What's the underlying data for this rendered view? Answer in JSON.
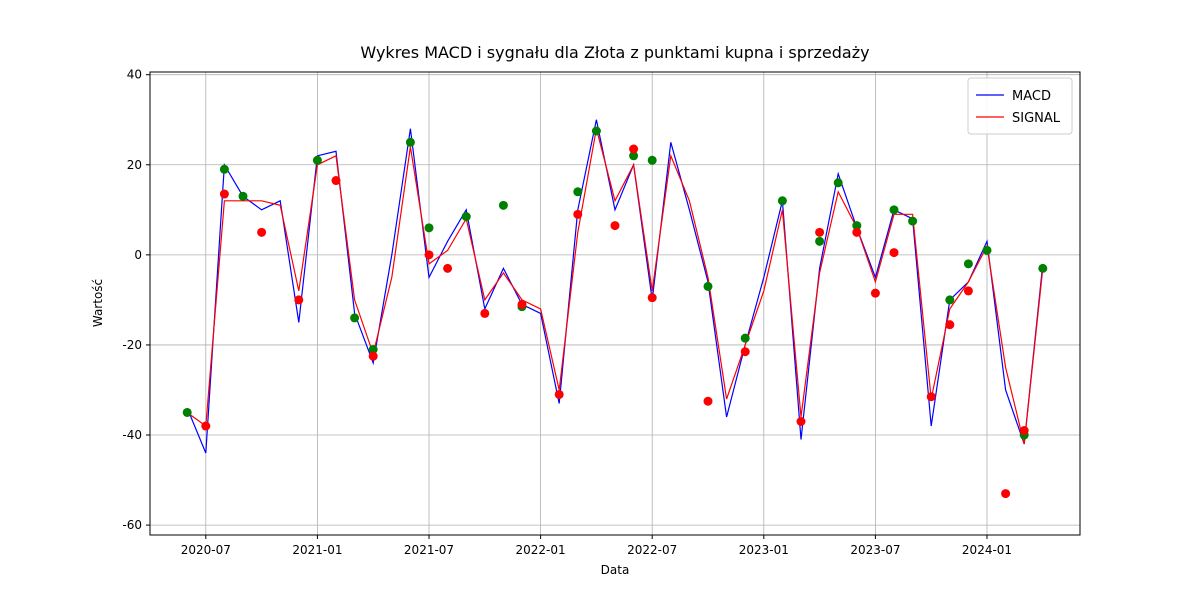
{
  "chart_data": {
    "type": "line",
    "title": "Wykres MACD i sygnału dla Złota z punktami kupna i sprzedaży",
    "x_label": "Data",
    "y_label": "Wartość",
    "x": [
      "2020-06",
      "2020-07",
      "2020-08",
      "2020-09",
      "2020-10",
      "2020-11",
      "2020-12",
      "2021-01",
      "2021-02",
      "2021-03",
      "2021-04",
      "2021-05",
      "2021-06",
      "2021-07",
      "2021-08",
      "2021-09",
      "2021-10",
      "2021-11",
      "2021-12",
      "2022-01",
      "2022-02",
      "2022-03",
      "2022-04",
      "2022-05",
      "2022-06",
      "2022-07",
      "2022-08",
      "2022-09",
      "2022-10",
      "2022-11",
      "2022-12",
      "2023-01",
      "2023-02",
      "2023-03",
      "2023-04",
      "2023-05",
      "2023-06",
      "2023-07",
      "2023-08",
      "2023-09",
      "2023-10",
      "2023-11",
      "2023-12",
      "2024-01",
      "2024-02",
      "2024-03",
      "2024-04"
    ],
    "series": [
      {
        "name": "MACD",
        "color": "#0000ff",
        "values": [
          -34,
          -44,
          20,
          13,
          10,
          12,
          -15,
          22,
          23,
          -13,
          -24,
          0,
          28,
          -5,
          3,
          10,
          -12,
          -3,
          -11,
          -13,
          -33,
          10,
          30,
          10,
          20,
          -10,
          25,
          10,
          -6,
          -36,
          -20,
          -5,
          12,
          -41,
          -3,
          18,
          6,
          -5,
          10,
          8,
          -38,
          -10,
          -6,
          3,
          -30,
          -42,
          -2
        ]
      },
      {
        "name": "SIGNAL",
        "color": "#ff0000",
        "values": [
          -35,
          -38,
          12,
          12,
          12,
          11,
          -8,
          20,
          22,
          -10,
          -22,
          -5,
          24,
          -2,
          1,
          8,
          -10,
          -4,
          -10,
          -12,
          -30,
          5,
          28,
          12,
          20,
          -8,
          22,
          12,
          -5,
          -32,
          -20,
          -8,
          10,
          -36,
          -4,
          14,
          6,
          -6,
          9,
          9,
          -32,
          -12,
          -6,
          2,
          -25,
          -42,
          -3
        ]
      }
    ],
    "markers": [
      {
        "color": "#008000",
        "x": [
          "2020-06",
          "2020-08",
          "2020-09",
          "2021-01",
          "2021-03",
          "2021-04",
          "2021-06",
          "2021-07",
          "2021-09",
          "2021-11",
          "2021-12",
          "2022-03",
          "2022-04",
          "2022-06",
          "2022-07",
          "2022-10",
          "2022-12",
          "2023-02",
          "2023-04",
          "2023-05",
          "2023-06",
          "2023-08",
          "2023-09",
          "2023-11",
          "2023-12",
          "2024-01",
          "2024-03",
          "2024-04"
        ],
        "values": [
          -35,
          19,
          13,
          21,
          -14,
          -21,
          25,
          6,
          8.5,
          11,
          -11.5,
          14,
          27.5,
          22,
          21,
          -7,
          -18.5,
          12,
          3,
          16,
          6.5,
          10,
          7.5,
          -10,
          -2,
          1,
          -40,
          -3
        ]
      },
      {
        "color": "#ff0000",
        "x": [
          "2020-07",
          "2020-08",
          "2020-10",
          "2020-12",
          "2021-02",
          "2021-04",
          "2021-07",
          "2021-08",
          "2021-10",
          "2021-12",
          "2022-02",
          "2022-03",
          "2022-05",
          "2022-06",
          "2022-07",
          "2022-10",
          "2022-12",
          "2023-03",
          "2023-04",
          "2023-06",
          "2023-07",
          "2023-08",
          "2023-10",
          "2023-11",
          "2023-12",
          "2024-02",
          "2024-03"
        ],
        "values": [
          -38,
          13.5,
          5,
          -10,
          16.5,
          -22.5,
          0,
          -3,
          -13,
          -11,
          -31,
          9,
          6.5,
          23.5,
          -9.5,
          -32.5,
          -21.5,
          -37,
          5,
          5,
          -8.5,
          0.5,
          -31.5,
          -15.5,
          -8,
          -53,
          -39
        ]
      }
    ],
    "xlim": [
      "2020-04",
      "2024-06"
    ],
    "xticks": [
      "2020-07",
      "2021-01",
      "2021-07",
      "2022-01",
      "2022-07",
      "2023-01",
      "2023-07",
      "2024-01"
    ],
    "ylim": [
      -62.2,
      40.6
    ],
    "yticks": [
      -60,
      -40,
      -20,
      0,
      20,
      40
    ],
    "grid": true,
    "legend": "upper-right"
  }
}
